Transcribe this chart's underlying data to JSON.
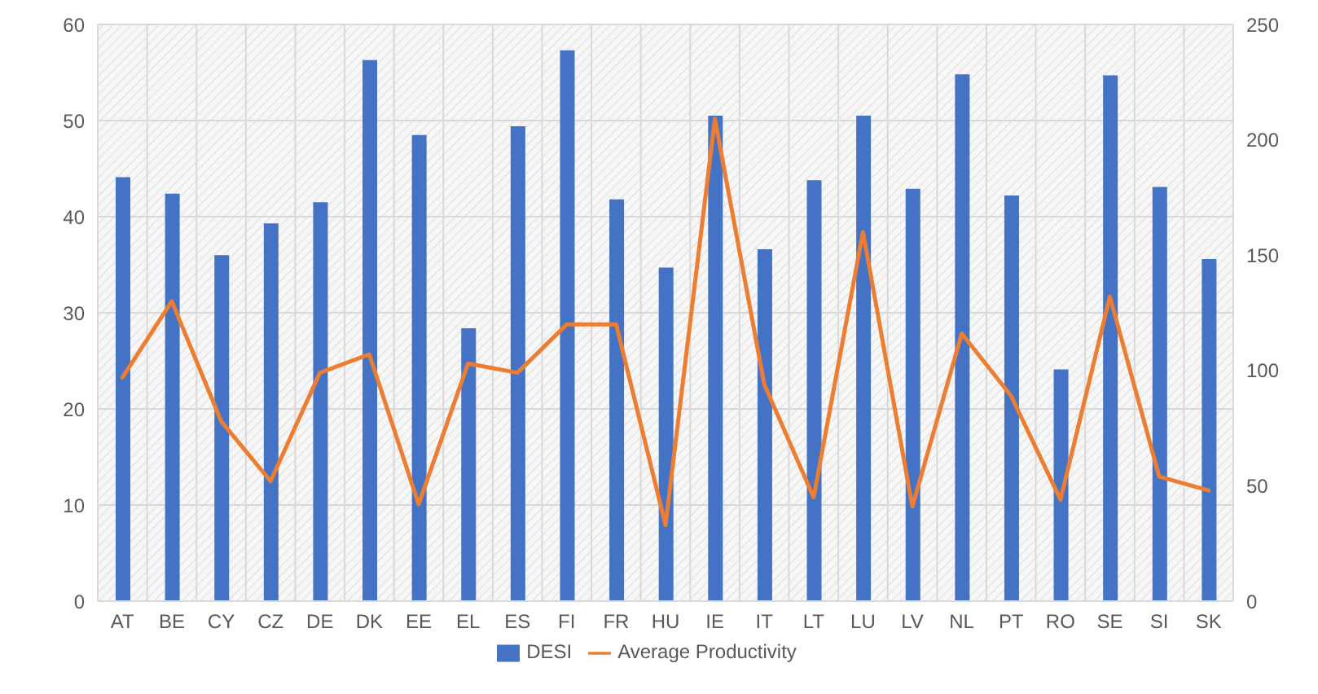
{
  "chart_data": {
    "type": "bar",
    "categories": [
      "AT",
      "BE",
      "CY",
      "CZ",
      "DE",
      "DK",
      "EE",
      "EL",
      "ES",
      "FI",
      "FR",
      "HU",
      "IE",
      "IT",
      "LT",
      "LU",
      "LV",
      "NL",
      "PT",
      "RO",
      "SE",
      "SI",
      "SK"
    ],
    "series": [
      {
        "name": "DESI",
        "color": "#4472c4",
        "values": [
          44.1,
          42.4,
          36.0,
          39.3,
          41.5,
          56.3,
          48.5,
          28.4,
          49.4,
          57.3,
          41.8,
          34.7,
          50.5,
          36.6,
          43.8,
          50.5,
          42.9,
          54.8,
          42.2,
          24.1,
          54.7,
          43.1,
          35.6
        ]
      },
      {
        "name": "Average Productivity",
        "type": "line",
        "axis": "y2",
        "color": "#ed7d31",
        "values": [
          97,
          130,
          78,
          52,
          99,
          107,
          42,
          103,
          99,
          120,
          120,
          33,
          209,
          94,
          45,
          160,
          41,
          116,
          89,
          44,
          132,
          54,
          48
        ]
      }
    ],
    "ylim": [
      0,
      60
    ],
    "yticks": [
      0,
      10,
      20,
      30,
      40,
      50,
      60
    ],
    "y2lim": [
      0,
      250
    ],
    "y2ticks": [
      0,
      50,
      100,
      150,
      200,
      250
    ],
    "grid": true,
    "legend": "bottom",
    "line_style": "solid"
  }
}
